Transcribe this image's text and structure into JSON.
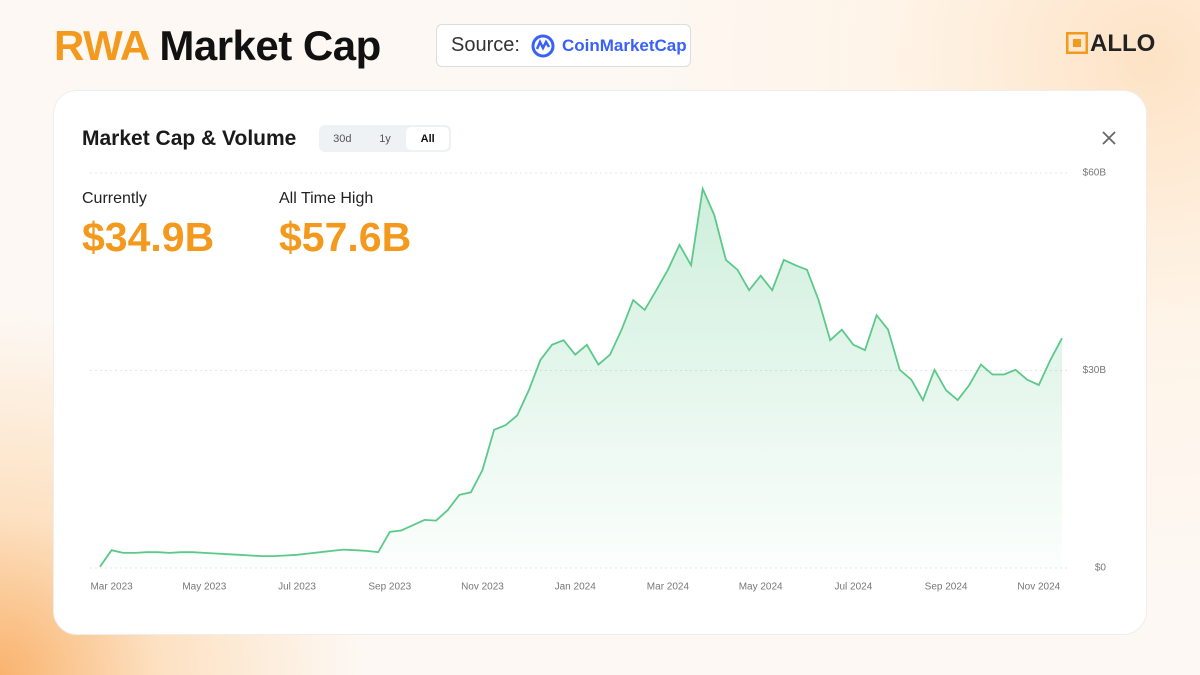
{
  "header": {
    "title_accent": "RWA",
    "title": "Market Cap",
    "source_label": "Source:",
    "source_name": "CoinMarketCap",
    "brand": "ALLO"
  },
  "card": {
    "title": "Market Cap & Volume",
    "tabs": [
      "30d",
      "1y",
      "All"
    ],
    "stats": [
      {
        "label": "Currently",
        "value": "$34.9B"
      },
      {
        "label": "All Time High",
        "value": "$57.6B"
      }
    ]
  },
  "chart_data": {
    "type": "line",
    "color": "#5cc98a",
    "grid": true,
    "categories": [
      null,
      "Mar 2023",
      null,
      null,
      null,
      null,
      null,
      null,
      null,
      "May 2023",
      null,
      null,
      null,
      null,
      null,
      null,
      null,
      "Jul 2023",
      null,
      null,
      null,
      null,
      null,
      null,
      null,
      "Sep 2023",
      null,
      null,
      null,
      null,
      null,
      null,
      null,
      "Nov 2023",
      null,
      null,
      null,
      null,
      null,
      null,
      null,
      "Jan 2024",
      null,
      null,
      null,
      null,
      null,
      null,
      null,
      "Mar 2024",
      null,
      null,
      null,
      null,
      null,
      null,
      null,
      "May 2024",
      null,
      null,
      null,
      null,
      null,
      null,
      null,
      "Jul 2024",
      null,
      null,
      null,
      null,
      null,
      null,
      null,
      "Sep 2024",
      null,
      null,
      null,
      null,
      null,
      null,
      null,
      "Nov 2024",
      null,
      null
    ],
    "values": [
      0.2,
      2.7,
      2.3,
      2.3,
      2.4,
      2.4,
      2.3,
      2.4,
      2.4,
      2.3,
      2.2,
      2.1,
      2.0,
      1.9,
      1.8,
      1.8,
      1.9,
      2.0,
      2.2,
      2.4,
      2.6,
      2.8,
      2.7,
      2.6,
      2.4,
      5.5,
      5.7,
      6.5,
      7.3,
      7.2,
      8.8,
      11.1,
      11.5,
      14.9,
      21,
      21.7,
      23.2,
      27,
      31.6,
      33.9,
      34.6,
      32.4,
      33.9,
      30.9,
      32.4,
      36.2,
      40.7,
      39.2,
      42.2,
      45.3,
      49.1,
      46,
      57.6,
      53.6,
      46.8,
      45.3,
      42.2,
      44.4,
      42.2,
      46.8,
      46,
      45.3,
      40.7,
      34.6,
      36.2,
      33.9,
      33.1,
      38.4,
      36.2,
      30.1,
      28.6,
      25.5,
      30.1,
      27,
      25.5,
      27.8,
      30.9,
      29.4,
      29.4,
      30.1,
      28.6,
      27.8,
      31.6,
      34.9
    ],
    "ylim": [
      0,
      60
    ],
    "yticks": [
      {
        "value": 0,
        "label": "$0"
      },
      {
        "value": 30,
        "label": "$30B"
      },
      {
        "value": 60,
        "label": "$60B"
      }
    ]
  }
}
